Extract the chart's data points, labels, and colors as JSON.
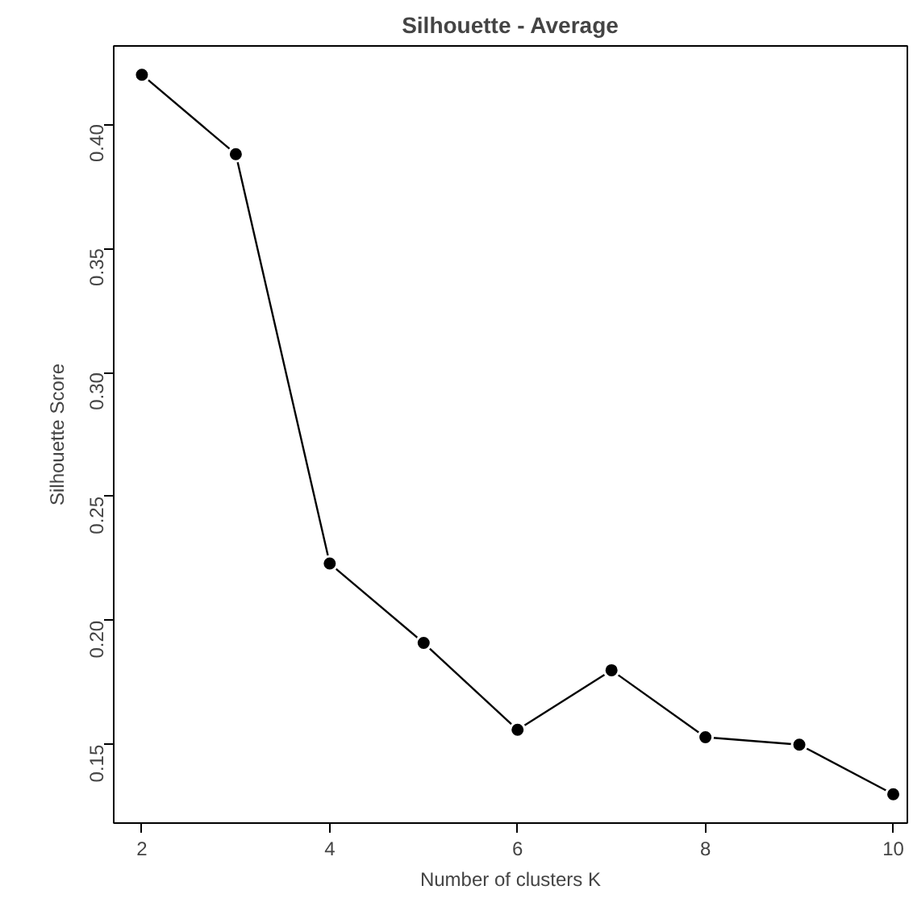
{
  "chart_data": {
    "type": "line",
    "title": "Silhouette - Average",
    "xlabel": "Number of clusters K",
    "ylabel": "Silhouette Score",
    "x": [
      2,
      3,
      4,
      5,
      6,
      7,
      8,
      9,
      10
    ],
    "series": [
      {
        "color": "#000000",
        "values": [
          0.42,
          0.388,
          0.223,
          0.191,
          0.156,
          0.18,
          0.153,
          0.15,
          0.13
        ]
      }
    ],
    "xlim": [
      1.7,
      10.15
    ],
    "ylim": [
      0.1184,
      0.4316
    ],
    "xticks": [
      2,
      4,
      6,
      8,
      10
    ],
    "yticks": [
      {
        "value": 0.15,
        "label": "0.15"
      },
      {
        "value": 0.2,
        "label": "0.20"
      },
      {
        "value": 0.25,
        "label": "0.25"
      },
      {
        "value": 0.3,
        "label": "0.30"
      },
      {
        "value": 0.35,
        "label": "0.35"
      },
      {
        "value": 0.4,
        "label": "0.40"
      }
    ],
    "marker": "circle",
    "line_style": "solid",
    "grid": false
  }
}
